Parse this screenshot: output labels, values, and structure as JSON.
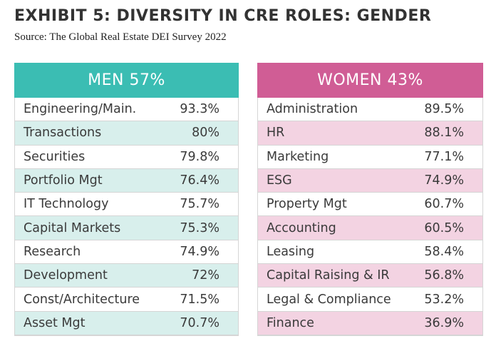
{
  "title": "EXHIBIT 5: DIVERSITY IN CRE ROLES: GENDER",
  "source": "Source: The Global Real Estate DEI Survey 2022",
  "colors": {
    "men": "#3bbdb3",
    "men_alt": "#d8efec",
    "women": "#d05d95",
    "women_alt": "#f3d3e2"
  },
  "chart_data": {
    "type": "table",
    "tables": [
      {
        "header": "MEN 57%",
        "rows": [
          {
            "role": "Engineering/Main.",
            "value": "93.3%"
          },
          {
            "role": "Transactions",
            "value": "80%"
          },
          {
            "role": "Securities",
            "value": "79.8%"
          },
          {
            "role": "Portfolio Mgt",
            "value": "76.4%"
          },
          {
            "role": "IT Technology",
            "value": "75.7%"
          },
          {
            "role": "Capital Markets",
            "value": "75.3%"
          },
          {
            "role": "Research",
            "value": "74.9%"
          },
          {
            "role": "Development",
            "value": "72%"
          },
          {
            "role": "Const/Architecture",
            "value": "71.5%"
          },
          {
            "role": "Asset Mgt",
            "value": "70.7%"
          }
        ]
      },
      {
        "header": "WOMEN 43%",
        "rows": [
          {
            "role": "Administration",
            "value": "89.5%"
          },
          {
            "role": "HR",
            "value": "88.1%"
          },
          {
            "role": "Marketing",
            "value": "77.1%"
          },
          {
            "role": "ESG",
            "value": "74.9%"
          },
          {
            "role": "Property Mgt",
            "value": "60.7%"
          },
          {
            "role": "Accounting",
            "value": "60.5%"
          },
          {
            "role": "Leasing",
            "value": "58.4%"
          },
          {
            "role": "Capital Raising & IR",
            "value": "56.8%"
          },
          {
            "role": "Legal & Compliance",
            "value": "53.2%"
          },
          {
            "role": "Finance",
            "value": "36.9%"
          }
        ]
      }
    ]
  }
}
